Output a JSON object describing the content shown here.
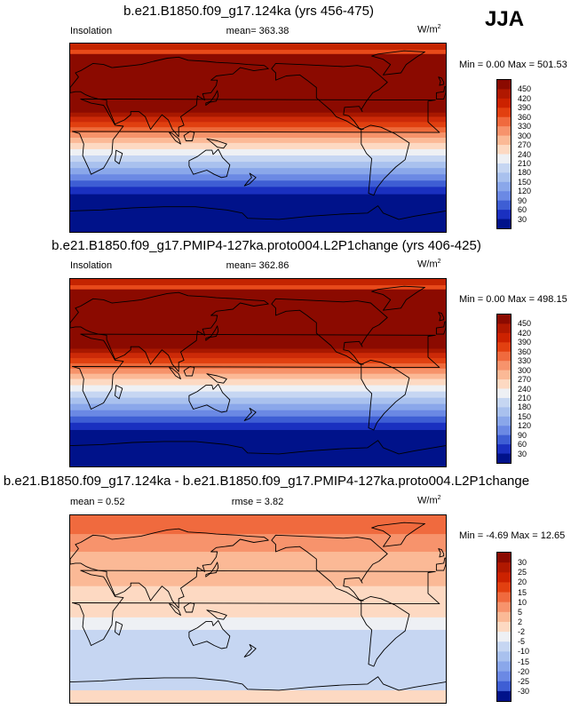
{
  "season": "JJA",
  "panels": [
    {
      "title": "b.e21.B1850.f09_g17.124ka (yrs 456-475)",
      "left_label": "Insolation",
      "center_label": "mean= 363.38",
      "right_label_base": "W/m",
      "right_label_sup": "2",
      "minmax": "Min =   0.00 Max = 501.53",
      "colorbar_labels": [
        "450",
        "420",
        "390",
        "360",
        "330",
        "300",
        "270",
        "240",
        "210",
        "180",
        "150",
        "120",
        "90",
        "60",
        "30"
      ],
      "colorbar_colors": [
        "#8b0a00",
        "#b01800",
        "#cc2200",
        "#e24010",
        "#f06a3e",
        "#f7936c",
        "#fbb996",
        "#fdd9c2",
        "#eef0f4",
        "#c6d6f2",
        "#a9c1ee",
        "#8aa7ea",
        "#6b89e4",
        "#3e5ed4",
        "#1a30c0",
        "#00128a"
      ],
      "bands": [
        {
          "lat": 90,
          "color": "#c42400"
        },
        {
          "lat": 84,
          "color": "#e84a1a"
        },
        {
          "lat": 80,
          "color": "#8b0a00"
        },
        {
          "lat": 24,
          "color": "#a81800"
        },
        {
          "lat": 20,
          "color": "#cc2a08"
        },
        {
          "lat": 15,
          "color": "#e04010"
        },
        {
          "lat": 10,
          "color": "#ee6a3a"
        },
        {
          "lat": 5,
          "color": "#f6936a"
        },
        {
          "lat": 0,
          "color": "#fbb996"
        },
        {
          "lat": -5,
          "color": "#fdd9c2"
        },
        {
          "lat": -11,
          "color": "#eef0f4"
        },
        {
          "lat": -17,
          "color": "#c6d6f2"
        },
        {
          "lat": -23,
          "color": "#a9c1ee"
        },
        {
          "lat": -29,
          "color": "#8aa7ea"
        },
        {
          "lat": -35,
          "color": "#6b89e4"
        },
        {
          "lat": -41,
          "color": "#3e5ed4"
        },
        {
          "lat": -47,
          "color": "#1a30c0"
        },
        {
          "lat": -54,
          "color": "#00128a"
        }
      ]
    },
    {
      "title": "b.e21.B1850.f09_g17.PMIP4-127ka.proto004.L2P1change (yrs 406-425)",
      "left_label": "Insolation",
      "center_label": "mean= 362.86",
      "right_label_base": "W/m",
      "right_label_sup": "2",
      "minmax": "Min =   0.00 Max = 498.15",
      "colorbar_labels": [
        "450",
        "420",
        "390",
        "360",
        "330",
        "300",
        "270",
        "240",
        "210",
        "180",
        "150",
        "120",
        "90",
        "60",
        "30"
      ],
      "colorbar_colors": [
        "#8b0a00",
        "#b01800",
        "#cc2200",
        "#e24010",
        "#f06a3e",
        "#f7936c",
        "#fbb996",
        "#fdd9c2",
        "#eef0f4",
        "#c6d6f2",
        "#a9c1ee",
        "#8aa7ea",
        "#6b89e4",
        "#3e5ed4",
        "#1a30c0",
        "#00128a"
      ],
      "bands": [
        {
          "lat": 90,
          "color": "#c42400"
        },
        {
          "lat": 84,
          "color": "#e84a1a"
        },
        {
          "lat": 80,
          "color": "#8b0a00"
        },
        {
          "lat": 23,
          "color": "#a81800"
        },
        {
          "lat": 19,
          "color": "#cc2a08"
        },
        {
          "lat": 14,
          "color": "#e04010"
        },
        {
          "lat": 9,
          "color": "#ee6a3a"
        },
        {
          "lat": 4,
          "color": "#f6936a"
        },
        {
          "lat": -1,
          "color": "#fbb996"
        },
        {
          "lat": -6,
          "color": "#fdd9c2"
        },
        {
          "lat": -12,
          "color": "#eef0f4"
        },
        {
          "lat": -18,
          "color": "#c6d6f2"
        },
        {
          "lat": -24,
          "color": "#a9c1ee"
        },
        {
          "lat": -30,
          "color": "#8aa7ea"
        },
        {
          "lat": -36,
          "color": "#6b89e4"
        },
        {
          "lat": -42,
          "color": "#3e5ed4"
        },
        {
          "lat": -48,
          "color": "#1a30c0"
        },
        {
          "lat": -55,
          "color": "#00128a"
        }
      ]
    },
    {
      "title": "b.e21.B1850.f09_g17.124ka - b.e21.B1850.f09_g17.PMIP4-127ka.proto004.L2P1change",
      "left_label": "mean =   0.52",
      "center_label": "rmse =   3.82",
      "right_label_base": "W/m",
      "right_label_sup": "2",
      "minmax": "Min =  -4.69 Max =  12.65",
      "colorbar_labels": [
        "30",
        "25",
        "20",
        "15",
        "10",
        "5",
        "2",
        "-2",
        "-5",
        "-10",
        "-15",
        "-20",
        "-25",
        "-30"
      ],
      "colorbar_colors": [
        "#8b0a00",
        "#b01800",
        "#cc2200",
        "#e24010",
        "#f06a3e",
        "#f7936c",
        "#fbb996",
        "#fdd9c2",
        "#eef0f4",
        "#c6d6f2",
        "#a9c1ee",
        "#8aa7ea",
        "#6b89e4",
        "#3e5ed4",
        "#00128a"
      ],
      "bands": [
        {
          "lat": 90,
          "color": "#f06a3e"
        },
        {
          "lat": 72,
          "color": "#f7936c"
        },
        {
          "lat": 55,
          "color": "#fbb996"
        },
        {
          "lat": 22,
          "color": "#fdd9c2"
        },
        {
          "lat": -8,
          "color": "#eef0f4"
        },
        {
          "lat": -20,
          "color": "#c6d6f2"
        },
        {
          "lat": -78,
          "color": "#fdd9c2"
        }
      ]
    }
  ]
}
